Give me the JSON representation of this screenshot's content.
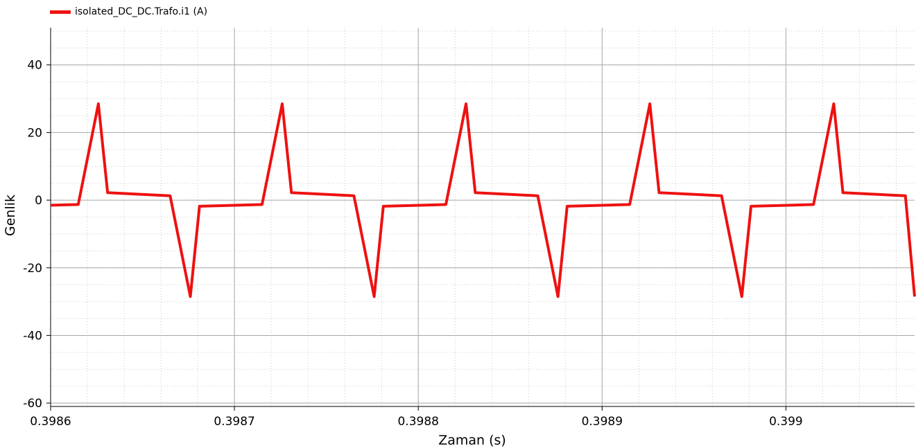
{
  "chart_data": {
    "type": "line",
    "title": "",
    "xlabel": "Zaman (s)",
    "ylabel": "Genlik",
    "xlim": [
      0.3986,
      0.39907
    ],
    "ylim": [
      -61,
      51
    ],
    "x_ticks": [
      0.3986,
      0.3987,
      0.3988,
      0.3989,
      0.399
    ],
    "x_tick_labels": [
      "0.3986",
      "0.3987",
      "0.3988",
      "0.3989",
      "0.399"
    ],
    "y_ticks": [
      -60,
      -40,
      -20,
      0,
      20,
      40
    ],
    "y_tick_labels": [
      "-60",
      "-40",
      "-20",
      "0",
      "20",
      "40"
    ],
    "grid": true,
    "legend_position": "top-left",
    "series": [
      {
        "name": "isolated_DC_DC.Trafo.i1 (A)",
        "color": "#ee1111",
        "x": [
          0.3986,
          0.398615,
          0.398626,
          0.398631,
          0.398665,
          0.398676,
          0.398681,
          0.398715,
          0.398726,
          0.398731,
          0.398765,
          0.398776,
          0.398781,
          0.398815,
          0.398826,
          0.398831,
          0.398865,
          0.398876,
          0.398881,
          0.398915,
          0.398926,
          0.398931,
          0.398965,
          0.398976,
          0.398981,
          0.399015,
          0.399026,
          0.399031,
          0.399065,
          0.39907
        ],
        "y": [
          -1.5,
          -1.3,
          28.5,
          2.2,
          1.3,
          -28.5,
          -1.8,
          -1.3,
          28.5,
          2.2,
          1.3,
          -28.5,
          -1.8,
          -1.3,
          28.5,
          2.2,
          1.3,
          -28.5,
          -1.8,
          -1.3,
          28.5,
          2.2,
          1.3,
          -28.5,
          -1.8,
          -1.3,
          28.5,
          2.2,
          1.3,
          -28.5
        ]
      }
    ]
  }
}
